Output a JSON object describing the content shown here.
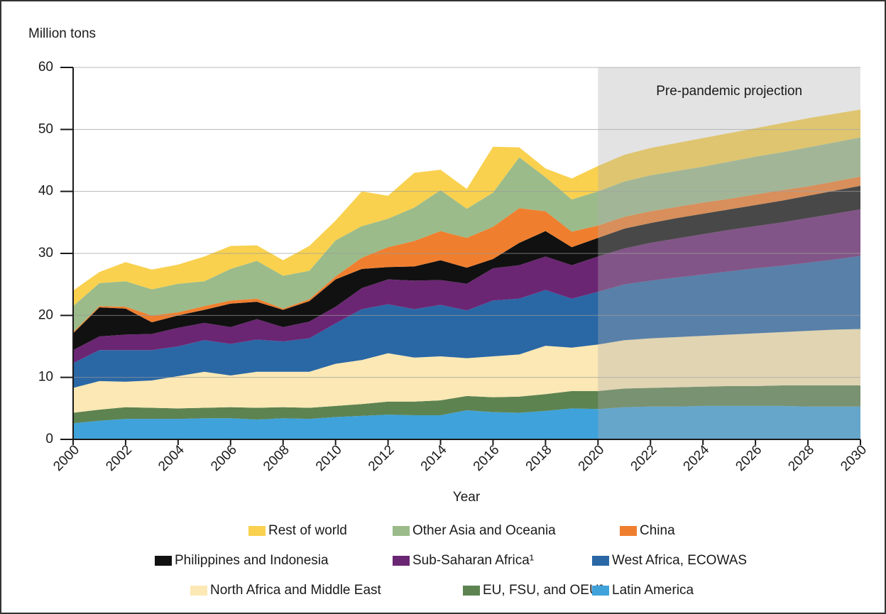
{
  "chart_data": {
    "type": "stacked_area",
    "y_axis_label": "Million tons",
    "x_axis_label": "Year",
    "x": [
      2000,
      2001,
      2002,
      2003,
      2004,
      2005,
      2006,
      2007,
      2008,
      2009,
      2010,
      2011,
      2012,
      2013,
      2014,
      2015,
      2016,
      2017,
      2018,
      2019,
      2020,
      2021,
      2022,
      2023,
      2024,
      2025,
      2026,
      2027,
      2028,
      2029,
      2030
    ],
    "xlim": [
      2000,
      2030
    ],
    "xticks": [
      2000,
      2002,
      2004,
      2006,
      2008,
      2010,
      2012,
      2014,
      2016,
      2018,
      2020,
      2022,
      2024,
      2026,
      2028,
      2030
    ],
    "ylim": [
      0,
      60
    ],
    "yticks": [
      0,
      10,
      20,
      30,
      40,
      50,
      60
    ],
    "grid": true,
    "shaded_region": {
      "x": [
        2020,
        2030
      ],
      "label": "Pre-pandemic projection"
    },
    "series": [
      {
        "name": "Rest of world",
        "color": "#f9d14f",
        "values": [
          2.5,
          1.8,
          3.1,
          3.2,
          3.1,
          4.0,
          3.7,
          2.5,
          2.5,
          4.0,
          3.2,
          5.6,
          3.7,
          5.6,
          3.3,
          3.2,
          7.4,
          1.6,
          1.4,
          3.4,
          4.1,
          4.3,
          4.4,
          4.5,
          4.6,
          4.6,
          4.6,
          4.7,
          4.7,
          4.6,
          4.5
        ]
      },
      {
        "name": "Other Asia and Oceania",
        "color": "#9bbb8a",
        "values": [
          4.2,
          3.7,
          4.1,
          4.2,
          4.6,
          4.0,
          5.1,
          6.1,
          5.3,
          4.6,
          5.8,
          5.1,
          4.6,
          5.4,
          6.6,
          4.7,
          5.5,
          8.2,
          5.5,
          5.2,
          5.5,
          5.7,
          5.8,
          5.8,
          5.8,
          6.0,
          6.1,
          6.1,
          6.3,
          6.3,
          6.3
        ]
      },
      {
        "name": "China",
        "color": "#ef7f2f",
        "values": [
          0.2,
          0.2,
          0.3,
          1.1,
          0.5,
          0.6,
          0.5,
          0.5,
          0.2,
          0.3,
          0.5,
          1.8,
          3.2,
          4.1,
          4.7,
          4.8,
          5.2,
          5.6,
          3.2,
          2.5,
          2.0,
          1.9,
          1.9,
          1.8,
          1.8,
          1.7,
          1.7,
          1.7,
          1.5,
          1.5,
          1.5
        ]
      },
      {
        "name": "Philippines and Indonesia",
        "color": "#111111",
        "values": [
          2.7,
          4.7,
          4.2,
          1.9,
          2.0,
          2.1,
          3.8,
          2.8,
          2.8,
          3.3,
          4.4,
          3.1,
          2.0,
          2.3,
          3.2,
          2.6,
          1.5,
          3.6,
          4.1,
          2.9,
          3.0,
          3.2,
          3.2,
          3.3,
          3.3,
          3.3,
          3.4,
          3.5,
          3.6,
          3.7,
          3.8
        ]
      },
      {
        "name": "Sub-Saharan Africa¹",
        "color": "#6b2673",
        "values": [
          2.1,
          2.2,
          2.5,
          2.6,
          3.0,
          2.8,
          2.7,
          3.3,
          2.3,
          2.7,
          2.7,
          3.4,
          4.0,
          4.6,
          4.0,
          4.3,
          5.2,
          5.4,
          5.4,
          5.4,
          5.7,
          5.8,
          6.1,
          6.3,
          6.5,
          6.7,
          6.8,
          7.0,
          7.2,
          7.4,
          7.5
        ]
      },
      {
        "name": "West Africa, ECOWAS",
        "color": "#2a67a5",
        "values": [
          4.0,
          5.0,
          5.1,
          4.9,
          4.8,
          5.1,
          5.1,
          5.2,
          4.9,
          5.4,
          6.5,
          8.2,
          7.9,
          7.8,
          8.3,
          7.7,
          9.0,
          9.0,
          9.0,
          7.9,
          8.5,
          9.0,
          9.3,
          9.6,
          9.9,
          10.2,
          10.5,
          10.7,
          11.0,
          11.3,
          11.8
        ]
      },
      {
        "name": "North Africa and Middle East",
        "color": "#fbe8b4",
        "values": [
          4.0,
          4.6,
          4.1,
          4.4,
          5.2,
          5.8,
          5.1,
          5.8,
          5.7,
          5.8,
          6.8,
          7.1,
          7.8,
          7.1,
          7.1,
          6.1,
          6.6,
          6.8,
          7.8,
          7.0,
          7.5,
          7.8,
          8.0,
          8.1,
          8.2,
          8.3,
          8.5,
          8.6,
          8.8,
          9.0,
          9.1
        ]
      },
      {
        "name": "EU, FSU, and OEU²",
        "color": "#5d8350",
        "values": [
          1.7,
          1.8,
          1.9,
          1.8,
          1.7,
          1.7,
          1.8,
          1.9,
          1.8,
          1.8,
          1.8,
          1.9,
          2.1,
          2.2,
          2.4,
          2.3,
          2.4,
          2.6,
          2.7,
          2.8,
          2.9,
          3.0,
          3.0,
          3.1,
          3.1,
          3.2,
          3.2,
          3.3,
          3.4,
          3.4,
          3.4
        ]
      },
      {
        "name": "Latin America",
        "color": "#3fa2da",
        "values": [
          2.6,
          3.0,
          3.3,
          3.3,
          3.3,
          3.4,
          3.4,
          3.2,
          3.4,
          3.3,
          3.6,
          3.8,
          4.0,
          3.9,
          3.9,
          4.7,
          4.4,
          4.3,
          4.6,
          5.0,
          4.9,
          5.2,
          5.3,
          5.3,
          5.4,
          5.4,
          5.4,
          5.4,
          5.3,
          5.3,
          5.3
        ]
      }
    ]
  }
}
